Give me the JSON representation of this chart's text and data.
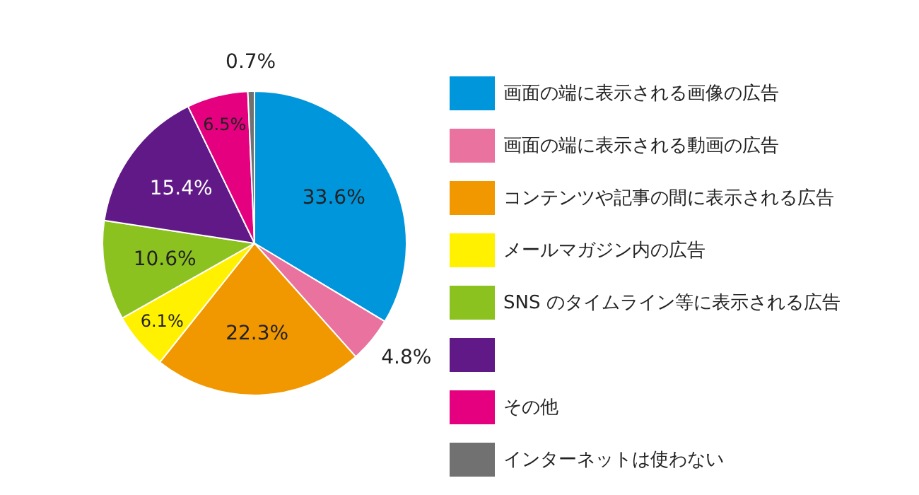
{
  "chart_data": {
    "type": "pie",
    "categories": [
      "画面の端に表示される画像の広告",
      "画面の端に表示される動画の広告",
      "コンテンツや記事の間に表示される広告",
      "メールマガジン内の広告",
      "SNS のタイムライン等に表示される広告",
      null,
      "その他",
      "インターネットは使わない"
    ],
    "values": [
      33.6,
      4.8,
      22.3,
      6.1,
      10.6,
      15.4,
      6.5,
      0.7
    ],
    "colors": [
      "#0096dc",
      "#e9729f",
      "#f19800",
      "#fff100",
      "#8cc21f",
      "#601986",
      "#e4007f",
      "#727171"
    ],
    "value_labels": [
      "33.6%",
      "4.8%",
      "22.3%",
      "6.1%",
      "10.6%",
      "15.4%",
      "6.5%",
      "0.7%"
    ],
    "legend": "right"
  }
}
